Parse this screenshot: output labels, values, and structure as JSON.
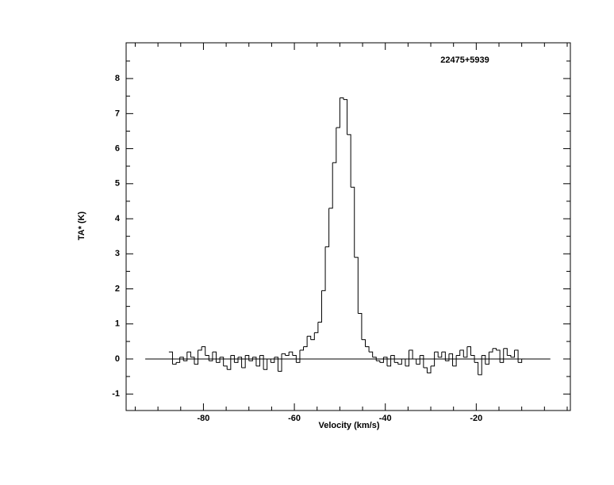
{
  "chart_data": {
    "type": "step",
    "title": "22475+5939",
    "xlabel": "Velocity (km/s)",
    "ylabel": "TA* (K)",
    "xlim": [
      -97,
      0.7
    ],
    "ylim": [
      -1.47,
      9.02
    ],
    "xticks": [
      -80,
      -60,
      -40,
      -20
    ],
    "xminorticks": [
      -95,
      -90,
      -85,
      -75,
      -70,
      -65,
      -55,
      -50,
      -45,
      -35,
      -30,
      -25,
      -15,
      -10,
      -5,
      0
    ],
    "yticks": [
      -1,
      0,
      1,
      2,
      3,
      4,
      5,
      6,
      7,
      8
    ],
    "yminorticks": [
      -0.5,
      0.5,
      1.5,
      2.5,
      3.5,
      4.5,
      5.5,
      6.5,
      7.5,
      8.5
    ],
    "zero_line": {
      "x": [
        -92.8,
        -3.7
      ],
      "y": [
        0,
        0
      ]
    },
    "color": "#000000",
    "x": [
      -87.2,
      -86.4,
      -85.6,
      -84.8,
      -84.0,
      -83.2,
      -82.4,
      -81.6,
      -80.8,
      -80.0,
      -79.2,
      -78.4,
      -77.6,
      -76.8,
      -76.0,
      -75.2,
      -74.4,
      -73.6,
      -72.8,
      -72.0,
      -71.2,
      -70.4,
      -69.6,
      -68.8,
      -68.0,
      -67.2,
      -66.4,
      -65.6,
      -64.8,
      -64.0,
      -63.2,
      -62.4,
      -61.6,
      -60.8,
      -60.0,
      -59.2,
      -58.4,
      -57.6,
      -56.8,
      -56.0,
      -55.2,
      -54.4,
      -53.6,
      -52.8,
      -52.0,
      -51.2,
      -50.4,
      -49.6,
      -48.8,
      -48.0,
      -47.2,
      -46.4,
      -45.6,
      -44.8,
      -44.0,
      -43.2,
      -42.4,
      -41.6,
      -40.8,
      -40.0,
      -39.2,
      -38.4,
      -37.6,
      -36.8,
      -36.0,
      -35.2,
      -34.4,
      -33.6,
      -32.8,
      -32.0,
      -31.2,
      -30.4,
      -29.6,
      -28.8,
      -28.0,
      -27.2,
      -26.4,
      -25.6,
      -24.8,
      -24.0,
      -23.2,
      -22.4,
      -21.6,
      -20.8,
      -20.0,
      -19.2,
      -18.4,
      -17.6,
      -16.8,
      -16.0,
      -15.2,
      -14.4,
      -13.6,
      -12.8,
      -12.0,
      -11.2,
      -10.4,
      -9.6
    ],
    "values": [
      0.2,
      -0.15,
      -0.1,
      0.05,
      -0.05,
      0.2,
      0.05,
      -0.15,
      0.25,
      0.35,
      0.1,
      -0.05,
      0.2,
      -0.1,
      0.05,
      -0.2,
      -0.3,
      0.1,
      -0.1,
      0.05,
      -0.25,
      0.1,
      -0.05,
      0.05,
      -0.2,
      0.1,
      -0.3,
      0.0,
      -0.1,
      0.05,
      -0.35,
      0.15,
      0.1,
      0.2,
      0.1,
      -0.1,
      0.25,
      0.35,
      0.65,
      0.55,
      0.75,
      1.05,
      1.95,
      3.2,
      4.3,
      5.6,
      6.6,
      7.45,
      7.4,
      6.4,
      4.9,
      2.9,
      1.3,
      0.55,
      0.35,
      0.2,
      0.05,
      -0.05,
      -0.1,
      0.05,
      -0.2,
      0.1,
      -0.1,
      -0.15,
      0.0,
      -0.2,
      0.25,
      0.0,
      -0.15,
      0.1,
      -0.25,
      -0.4,
      -0.2,
      0.2,
      0.05,
      0.2,
      -0.05,
      0.15,
      -0.2,
      0.1,
      0.25,
      0.05,
      0.35,
      0.1,
      -0.1,
      -0.45,
      0.1,
      -0.15,
      0.2,
      0.3,
      0.25,
      -0.1,
      0.3,
      0.1,
      0.05,
      0.25,
      -0.1,
      0.0
    ]
  }
}
